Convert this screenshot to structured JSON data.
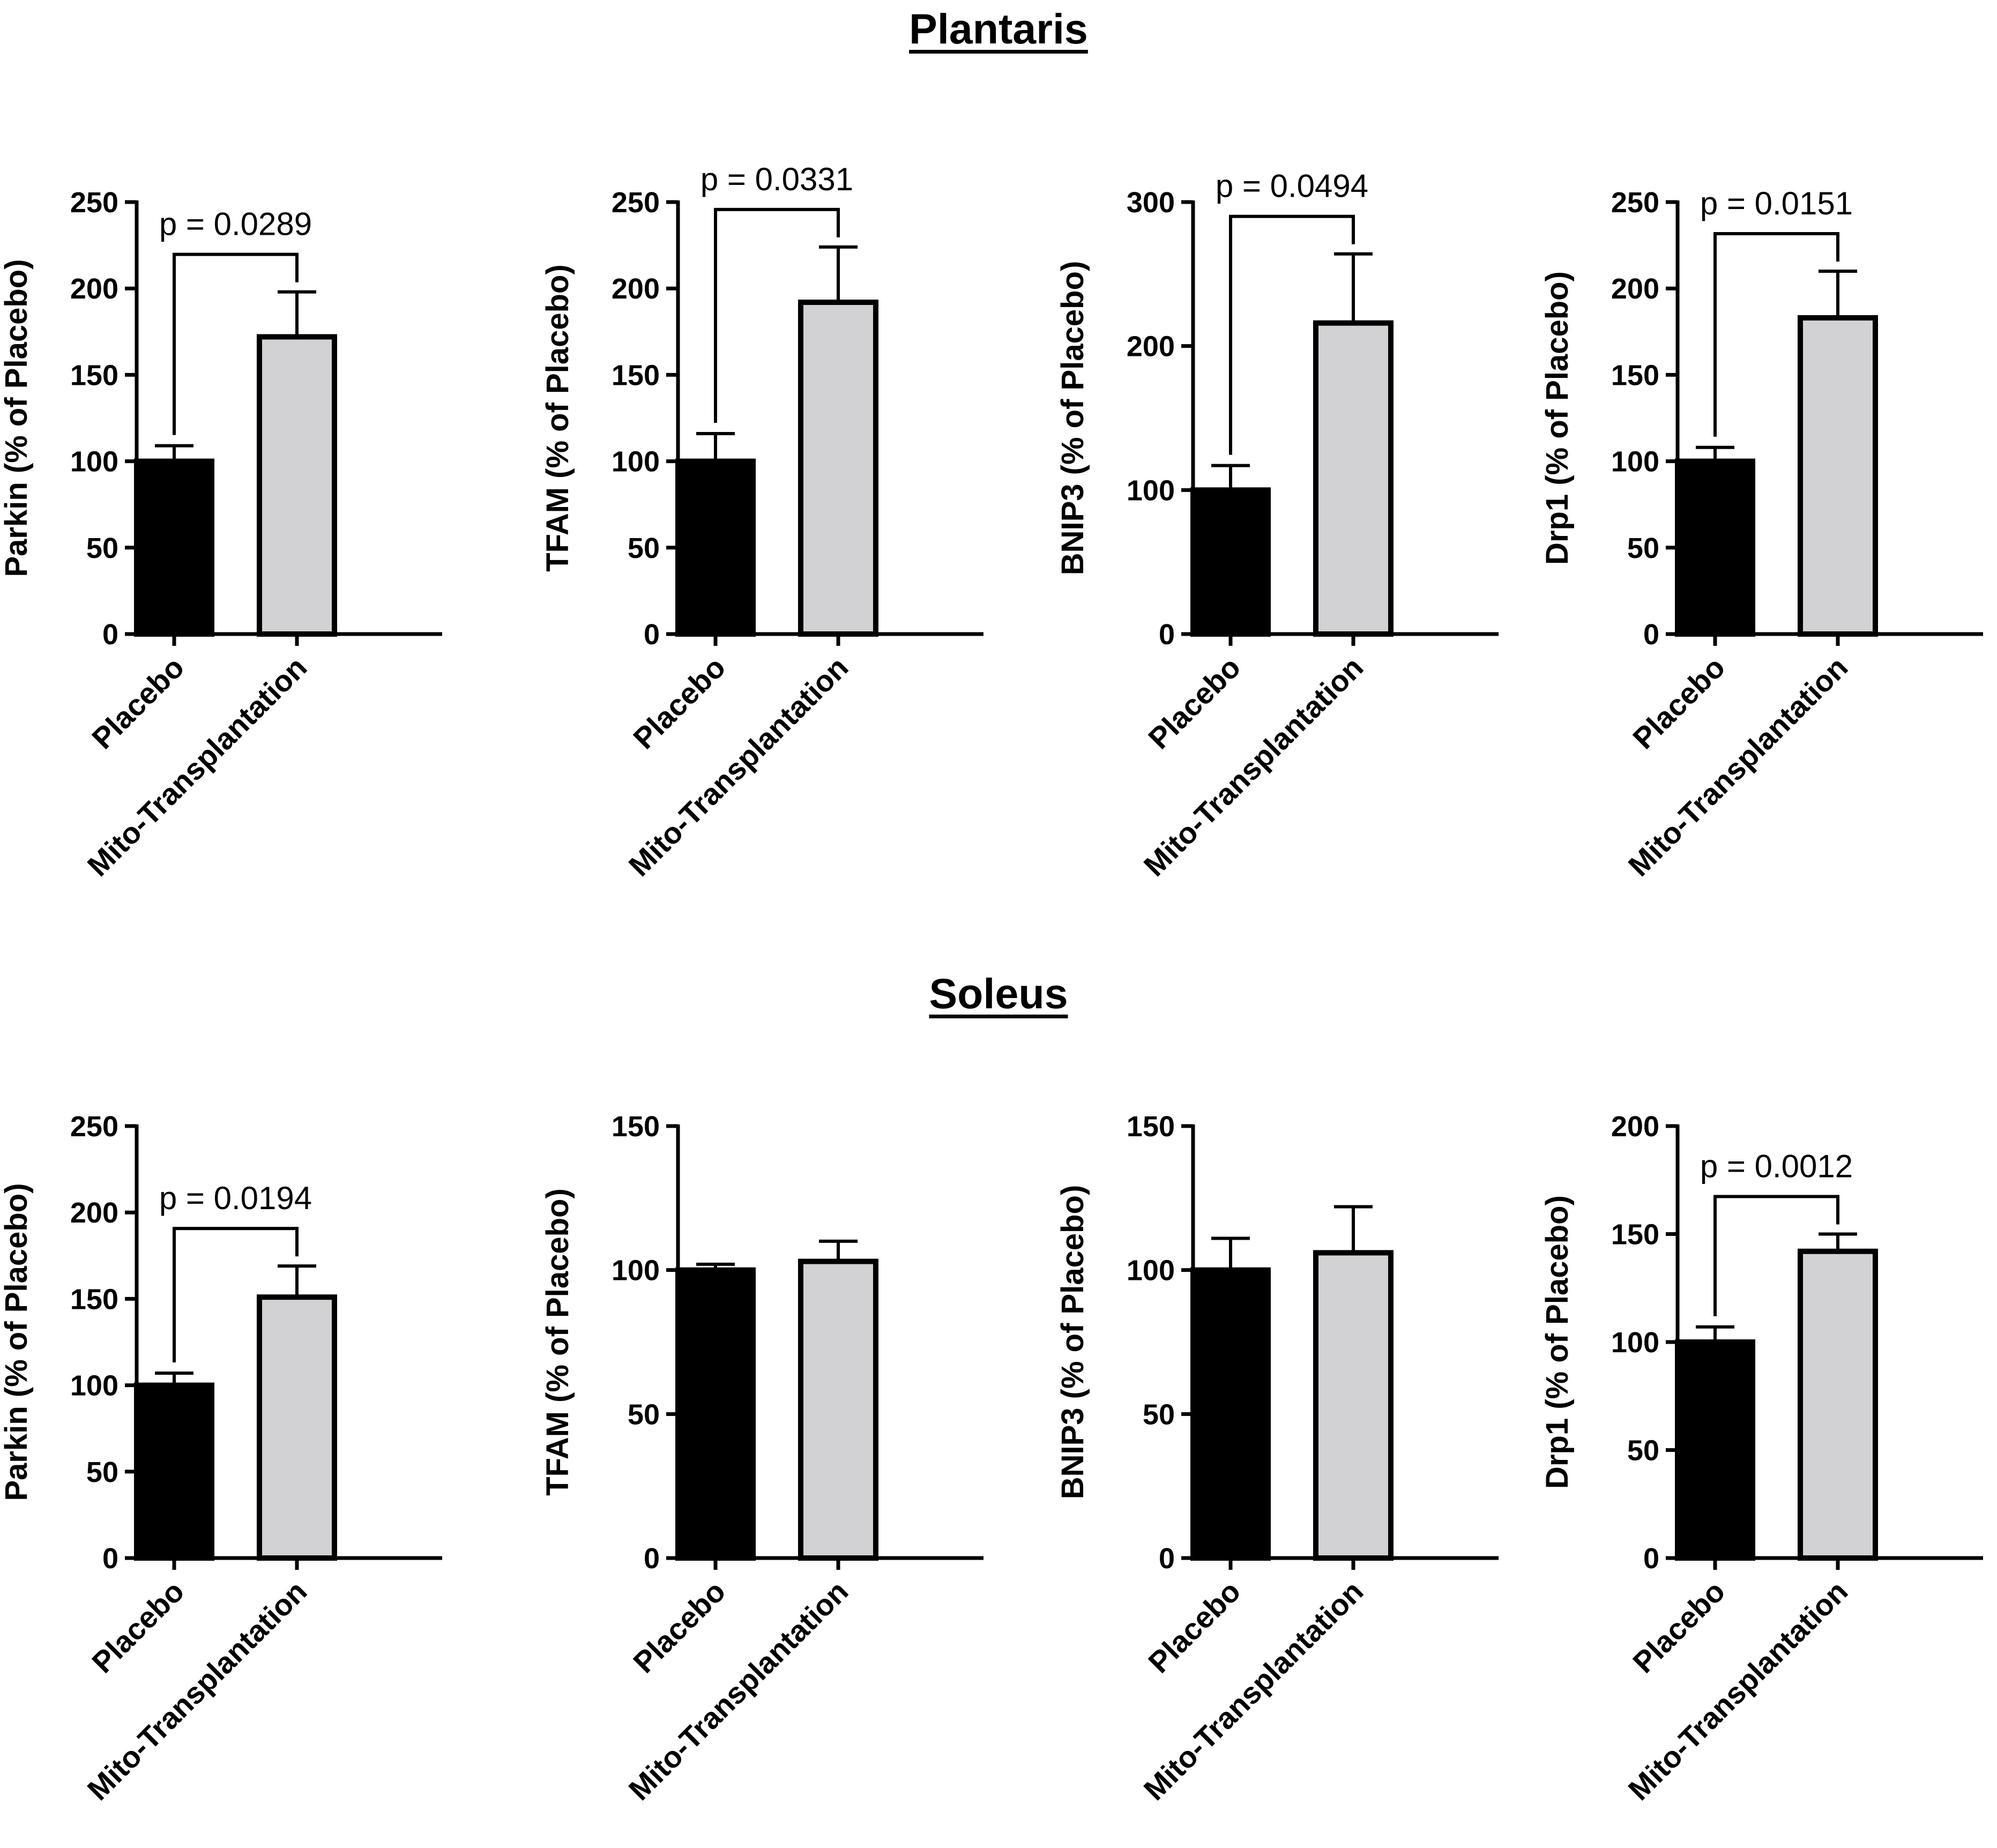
{
  "colors": {
    "placebo": "#000000",
    "mito": "#d2d2d4",
    "axis": "#000000"
  },
  "sections": [
    {
      "title": "Plantaris"
    },
    {
      "title": "Soleus"
    }
  ],
  "chart_data": [
    {
      "type": "bar",
      "section": "Plantaris",
      "ylabel": "Parkin (% of Placebo)",
      "categories": [
        "Placebo",
        "Mito-Transplantation"
      ],
      "values": [
        100,
        172
      ],
      "errors": [
        9,
        26
      ],
      "ylim": [
        0,
        250
      ],
      "yticks": [
        0,
        50,
        100,
        150,
        200,
        250
      ],
      "pvalue": "p = 0.0289"
    },
    {
      "type": "bar",
      "section": "Plantaris",
      "ylabel": "TFAM (% of Placebo)",
      "categories": [
        "Placebo",
        "Mito-Transplantation"
      ],
      "values": [
        100,
        192
      ],
      "errors": [
        16,
        32
      ],
      "ylim": [
        0,
        250
      ],
      "yticks": [
        0,
        50,
        100,
        150,
        200,
        250
      ],
      "pvalue": "p = 0.0331"
    },
    {
      "type": "bar",
      "section": "Plantaris",
      "ylabel": "BNIP3 (% of Placebo)",
      "categories": [
        "Placebo",
        "Mito-Transplantation"
      ],
      "values": [
        100,
        216
      ],
      "errors": [
        17,
        48
      ],
      "ylim": [
        0,
        300
      ],
      "yticks": [
        0,
        100,
        200,
        300
      ],
      "pvalue": "p = 0.0494"
    },
    {
      "type": "bar",
      "section": "Plantaris",
      "ylabel": "Drp1 (% of Placebo)",
      "categories": [
        "Placebo",
        "Mito-Transplantation"
      ],
      "values": [
        100,
        183
      ],
      "errors": [
        8,
        27
      ],
      "ylim": [
        0,
        250
      ],
      "yticks": [
        0,
        50,
        100,
        150,
        200,
        250
      ],
      "pvalue": "p = 0.0151"
    },
    {
      "type": "bar",
      "section": "Soleus",
      "ylabel": "Parkin (% of Placebo)",
      "categories": [
        "Placebo",
        "Mito-Transplantation"
      ],
      "values": [
        100,
        151
      ],
      "errors": [
        7,
        18
      ],
      "ylim": [
        0,
        250
      ],
      "yticks": [
        0,
        50,
        100,
        150,
        200,
        250
      ],
      "pvalue": "p = 0.0194"
    },
    {
      "type": "bar",
      "section": "Soleus",
      "ylabel": "TFAM (% of Placebo)",
      "categories": [
        "Placebo",
        "Mito-Transplantation"
      ],
      "values": [
        100,
        103
      ],
      "errors": [
        2,
        7
      ],
      "ylim": [
        0,
        150
      ],
      "yticks": [
        0,
        50,
        100,
        150
      ],
      "pvalue": null
    },
    {
      "type": "bar",
      "section": "Soleus",
      "ylabel": "BNIP3 (% of Placebo)",
      "categories": [
        "Placebo",
        "Mito-Transplantation"
      ],
      "values": [
        100,
        106
      ],
      "errors": [
        11,
        16
      ],
      "ylim": [
        0,
        150
      ],
      "yticks": [
        0,
        50,
        100,
        150
      ],
      "pvalue": null
    },
    {
      "type": "bar",
      "section": "Soleus",
      "ylabel": "Drp1 (% of Placebo)",
      "categories": [
        "Placebo",
        "Mito-Transplantation"
      ],
      "values": [
        100,
        142
      ],
      "errors": [
        7,
        8
      ],
      "ylim": [
        0,
        200
      ],
      "yticks": [
        0,
        50,
        100,
        150,
        200
      ],
      "pvalue": "p = 0.0012"
    }
  ]
}
